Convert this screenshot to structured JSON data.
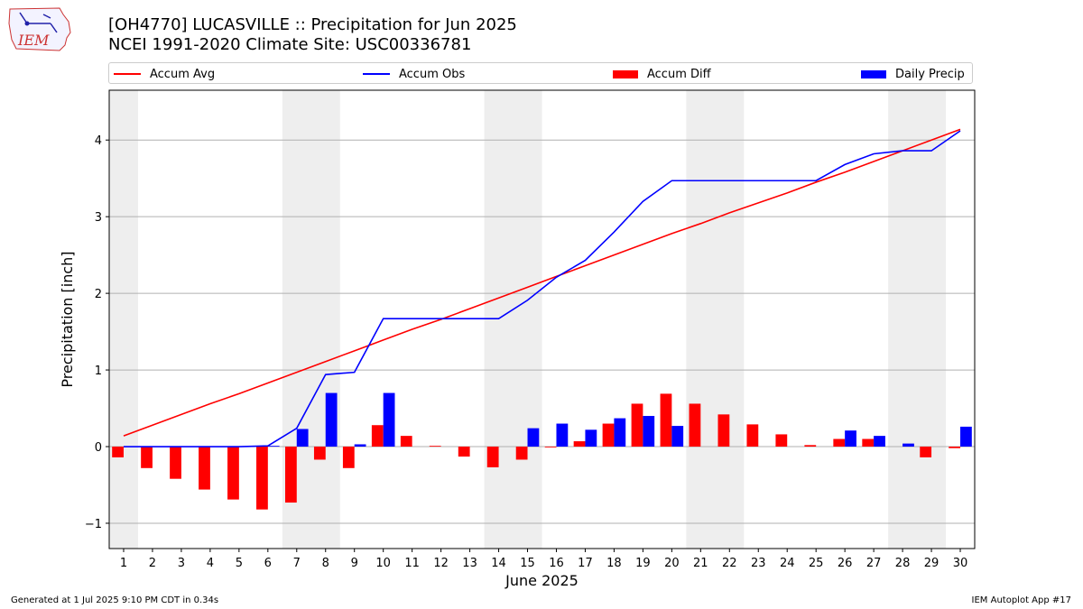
{
  "header": {
    "title": "[OH4770] LUCASVILLE :: Precipitation for Jun 2025",
    "subtitle": "NCEI 1991-2020 Climate Site: USC00336781"
  },
  "logo": {
    "text": "IEM",
    "icon": "iem-logo-iowa-outline"
  },
  "legend": {
    "placement": "top, above plot",
    "items": [
      {
        "label": "Accum Avg",
        "color": "#ff0000",
        "kind": "line"
      },
      {
        "label": "Accum Obs",
        "color": "#0000ff",
        "kind": "line"
      },
      {
        "label": "Accum Diff",
        "color": "#ff0000",
        "kind": "bar"
      },
      {
        "label": "Daily Precip",
        "color": "#0000ff",
        "kind": "bar"
      }
    ]
  },
  "footer": {
    "left": "Generated at 1 Jul 2025 9:10 PM CDT in 0.34s",
    "right": "IEM Autoplot App #17"
  },
  "chart_data": {
    "type": "bar",
    "xlabel": "June 2025",
    "ylabel": "Precipitation [inch]",
    "xlim": [
      0.5,
      30.5
    ],
    "ylim": [
      -1.33,
      4.65
    ],
    "yticks": [
      -1,
      0,
      1,
      2,
      3,
      4
    ],
    "ytick_labels": [
      "−1",
      "0",
      "1",
      "2",
      "3",
      "4"
    ],
    "grid": "horizontal",
    "weekend_shading": [
      [
        0.5,
        1.5
      ],
      [
        6.5,
        8.5
      ],
      [
        13.5,
        15.5
      ],
      [
        20.5,
        22.5
      ],
      [
        27.5,
        29.5
      ]
    ],
    "shading_color": "#eeeeee",
    "categories": [
      "1",
      "2",
      "3",
      "4",
      "5",
      "6",
      "7",
      "8",
      "9",
      "10",
      "11",
      "12",
      "13",
      "14",
      "15",
      "16",
      "17",
      "18",
      "19",
      "20",
      "21",
      "22",
      "23",
      "24",
      "25",
      "26",
      "27",
      "28",
      "29",
      "30"
    ],
    "series": [
      {
        "name": "Accum Avg",
        "kind": "line",
        "color": "#ff0000",
        "values": [
          0.14,
          0.28,
          0.42,
          0.56,
          0.69,
          0.83,
          0.97,
          1.11,
          1.25,
          1.39,
          1.53,
          1.66,
          1.8,
          1.94,
          2.08,
          2.22,
          2.36,
          2.5,
          2.64,
          2.78,
          2.91,
          3.05,
          3.18,
          3.31,
          3.45,
          3.58,
          3.72,
          3.86,
          4.0,
          4.14
        ]
      },
      {
        "name": "Accum Obs",
        "kind": "line",
        "color": "#0000ff",
        "values": [
          0.0,
          0.0,
          0.0,
          0.0,
          0.0,
          0.01,
          0.24,
          0.94,
          0.97,
          1.67,
          1.67,
          1.67,
          1.67,
          1.67,
          1.91,
          2.21,
          2.43,
          2.8,
          3.2,
          3.47,
          3.47,
          3.47,
          3.47,
          3.47,
          3.47,
          3.68,
          3.82,
          3.86,
          3.86,
          4.12
        ]
      },
      {
        "name": "Accum Diff",
        "kind": "bar",
        "color": "#ff0000",
        "values": [
          -0.14,
          -0.28,
          -0.42,
          -0.56,
          -0.69,
          -0.82,
          -0.73,
          -0.17,
          -0.28,
          0.28,
          0.14,
          0.01,
          -0.13,
          -0.27,
          -0.17,
          -0.01,
          0.07,
          0.3,
          0.56,
          0.69,
          0.56,
          0.42,
          0.29,
          0.16,
          0.02,
          0.1,
          0.1,
          0.0,
          -0.14,
          -0.02
        ]
      },
      {
        "name": "Daily Precip",
        "kind": "bar",
        "color": "#0000ff",
        "values": [
          0.0,
          0.0,
          0.0,
          0.0,
          0.0,
          0.01,
          0.23,
          0.7,
          0.03,
          0.7,
          0.0,
          0.0,
          0.0,
          0.0,
          0.24,
          0.3,
          0.22,
          0.37,
          0.4,
          0.27,
          0.0,
          0.0,
          0.0,
          0.0,
          0.0,
          0.21,
          0.14,
          0.04,
          0.0,
          0.26
        ]
      }
    ]
  }
}
